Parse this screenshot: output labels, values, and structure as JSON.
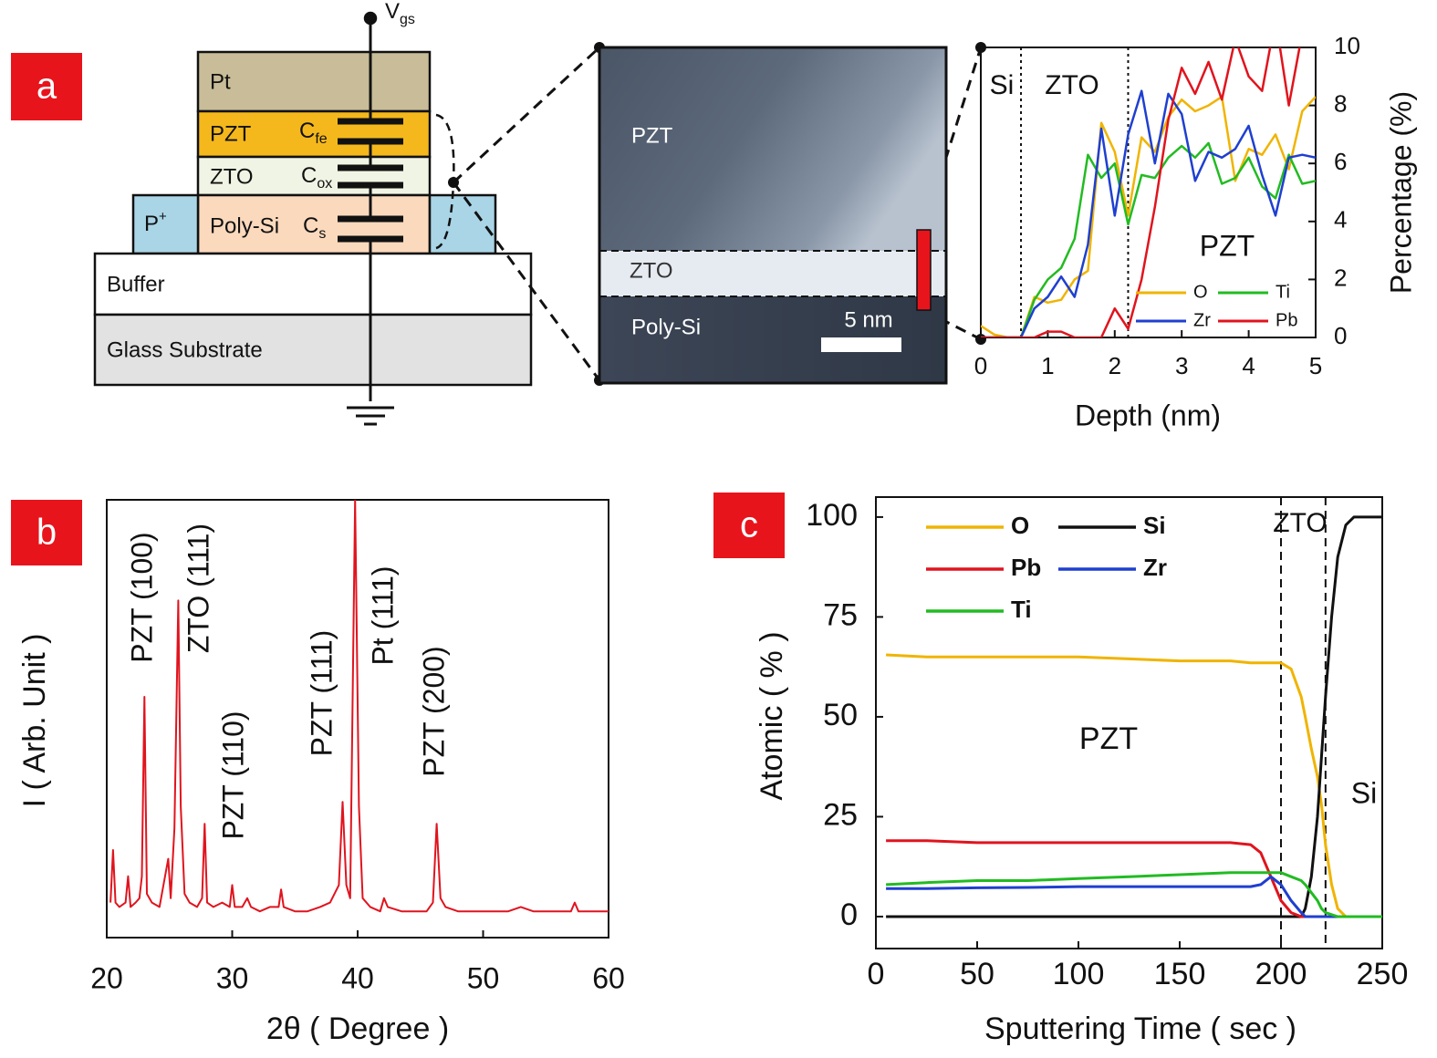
{
  "panel_labels": [
    "a",
    "b",
    "c"
  ],
  "diagram": {
    "terminal": {
      "main": "V",
      "sub": "gs"
    },
    "layers": {
      "pt": "Pt",
      "pzt": "PZT",
      "zto": "ZTO",
      "poly_si": "Poly-Si",
      "p_plus": {
        "main": "P",
        "sup": "+"
      },
      "buffer": "Buffer",
      "glass": "Glass Substrate"
    },
    "capacitors": [
      {
        "main": "C",
        "sub": "fe"
      },
      {
        "main": "C",
        "sub": "ox"
      },
      {
        "main": "C",
        "sub": "s"
      }
    ]
  },
  "tem": {
    "labels": [
      "PZT",
      "ZTO",
      "Poly-Si"
    ],
    "scale_bar": "5 nm"
  },
  "chart_data": [
    {
      "type": "line",
      "xlabel": "Depth (nm)",
      "ylabel": "Percentage (%)",
      "y_axis_side": "right",
      "x": [
        0,
        0.2,
        0.4,
        0.6,
        0.8,
        1.0,
        1.2,
        1.4,
        1.6,
        1.8,
        2.0,
        2.2,
        2.4,
        2.6,
        2.8,
        3.0,
        3.2,
        3.4,
        3.6,
        3.8,
        4.0,
        4.2,
        4.4,
        4.6,
        4.8,
        5.0
      ],
      "xlim": [
        0,
        5
      ],
      "xticks": [
        0,
        1,
        2,
        3,
        4,
        5
      ],
      "ylim": [
        0,
        10
      ],
      "yticks": [
        0,
        2,
        4,
        6,
        8,
        10
      ],
      "vlines": [
        0.6,
        2.2
      ],
      "annotations": [
        "Si",
        "ZTO",
        "PZT"
      ],
      "legend": "lower right",
      "series": [
        {
          "name": "O",
          "color": "#f0b400",
          "values": [
            0.4,
            0.1,
            0,
            0,
            1.4,
            1.2,
            1.3,
            2.0,
            2.3,
            7.4,
            6.4,
            4.2,
            6.9,
            6.4,
            7.6,
            8.2,
            7.8,
            8.0,
            8.3,
            5.4,
            6.5,
            6.3,
            7.0,
            5.8,
            7.8,
            8.3
          ]
        },
        {
          "name": "Ti",
          "color": "#22bb22",
          "values": [
            0,
            0,
            0,
            0,
            1.3,
            2.0,
            2.4,
            3.4,
            6.3,
            5.5,
            6.0,
            3.9,
            5.6,
            5.5,
            6.2,
            6.6,
            6.2,
            6.7,
            5.3,
            5.5,
            6.2,
            5.2,
            4.8,
            6.3,
            5.3,
            5.4
          ]
        },
        {
          "name": "Zr",
          "color": "#1f3fd0",
          "values": [
            0,
            0,
            0,
            0,
            1.0,
            1.4,
            2.1,
            1.4,
            3.2,
            7.2,
            4.2,
            7.0,
            8.5,
            6.0,
            8.4,
            7.7,
            5.4,
            6.4,
            6.2,
            6.5,
            7.3,
            5.6,
            4.2,
            6.2,
            6.3,
            6.2
          ]
        },
        {
          "name": "Pb",
          "color": "#e0141e",
          "values": [
            0,
            0,
            0,
            0,
            0,
            0.2,
            0.2,
            0,
            0,
            0,
            1.0,
            0.3,
            2.0,
            4.5,
            7.5,
            9.3,
            8.4,
            9.5,
            8.2,
            10.3,
            9.0,
            8.5,
            11,
            8.0,
            10.5,
            11
          ]
        }
      ]
    },
    {
      "type": "line",
      "xlabel": "2θ ( Degree )",
      "ylabel": "I ( Arb. Unit )",
      "x": [
        20.3,
        20.5,
        20.7,
        21.0,
        21.5,
        21.7,
        21.9,
        22.3,
        22.6,
        22.8,
        23.0,
        23.2,
        23.6,
        24.2,
        24.9,
        25.1,
        25.4,
        25.7,
        25.9,
        26.2,
        26.6,
        27.2,
        27.6,
        27.8,
        28.0,
        28.5,
        29.2,
        29.8,
        30.0,
        30.2,
        30.8,
        31.2,
        31.5,
        32.2,
        33.0,
        33.7,
        33.9,
        34.1,
        35,
        36,
        37,
        37.8,
        38.5,
        38.8,
        39.1,
        39.4,
        39.8,
        40.1,
        40.4,
        41,
        41.8,
        42.1,
        42.4,
        43.5,
        44.5,
        45.5,
        46.0,
        46.3,
        46.6,
        47,
        48,
        49,
        50,
        51,
        52,
        53,
        54,
        55,
        56,
        57,
        57.3,
        57.6,
        58,
        59,
        60
      ],
      "values": [
        8,
        20,
        8,
        7,
        8,
        14,
        7,
        8,
        9,
        14,
        55,
        10,
        8,
        7,
        18,
        9,
        25,
        77,
        30,
        10,
        8,
        7,
        9,
        26,
        8,
        7,
        8,
        7,
        12,
        7,
        7,
        9,
        7,
        6,
        7,
        7,
        11,
        7,
        6,
        6,
        7,
        8,
        12,
        31,
        12,
        9,
        100,
        30,
        9,
        7,
        6,
        9,
        7,
        6,
        6,
        6,
        8,
        26,
        9,
        7,
        6,
        6,
        6,
        6,
        6,
        7,
        6,
        6,
        6,
        6,
        8,
        6,
        6,
        6,
        6
      ],
      "color": "#e0141e",
      "xlim": [
        20,
        60
      ],
      "xticks": [
        20,
        30,
        40,
        50,
        60
      ],
      "ylim": [
        0,
        100
      ],
      "annotations": [
        "PZT (100)",
        "ZTO (111)",
        "PZT (110)",
        "PZT (111)",
        "Pt (111)",
        "PZT (200)"
      ]
    },
    {
      "type": "line",
      "xlabel": "Sputtering Time ( sec )",
      "ylabel": "Atomic ( % )",
      "x": [
        5,
        25,
        50,
        75,
        100,
        125,
        150,
        175,
        185,
        190,
        195,
        200,
        205,
        210,
        212,
        215,
        218,
        220,
        222,
        225,
        228,
        232,
        236,
        240,
        245,
        250
      ],
      "xlim": [
        0,
        250
      ],
      "xticks": [
        0,
        50,
        100,
        150,
        200,
        250
      ],
      "ylim": [
        -8,
        105
      ],
      "yticks": [
        0,
        25,
        50,
        75,
        100
      ],
      "vlines": [
        200,
        222
      ],
      "annotations": [
        "ZTO",
        "PZT",
        "Si"
      ],
      "legend": "upper left",
      "series": [
        {
          "name": "O",
          "color": "#f0b400",
          "values": [
            65.5,
            65,
            65,
            65,
            65,
            64.5,
            64,
            64,
            63.5,
            63.5,
            63.5,
            63.5,
            62,
            55,
            50,
            42,
            35,
            28,
            18,
            8,
            2,
            0,
            0,
            0,
            0,
            0
          ]
        },
        {
          "name": "Si",
          "color": "#111111",
          "values": [
            0,
            0,
            0,
            0,
            0,
            0,
            0,
            0,
            0,
            0,
            0,
            0,
            0,
            0,
            2,
            10,
            25,
            40,
            55,
            75,
            90,
            98,
            100,
            100,
            100,
            100
          ]
        },
        {
          "name": "Pb",
          "color": "#e0141e",
          "values": [
            19,
            19,
            18.5,
            18.5,
            18.5,
            18.5,
            18.5,
            18.5,
            18,
            16,
            10,
            4,
            1,
            0,
            0,
            0,
            0,
            0,
            0,
            0,
            0,
            0,
            0,
            0,
            0,
            0
          ]
        },
        {
          "name": "Zr",
          "color": "#1f3fd0",
          "values": [
            7,
            7,
            7.2,
            7.3,
            7.5,
            7.5,
            7.5,
            7.5,
            7.5,
            8,
            10,
            8,
            4,
            1,
            0,
            0,
            0,
            0,
            0,
            0,
            0,
            0,
            0,
            0,
            0,
            0
          ]
        },
        {
          "name": "Ti",
          "color": "#22bb22",
          "values": [
            8,
            8.5,
            9,
            9,
            9.5,
            10,
            10.5,
            11,
            11,
            11,
            11,
            11,
            10,
            9,
            8,
            6,
            4,
            2,
            1,
            0.5,
            0,
            0,
            0,
            0,
            0,
            0
          ]
        }
      ]
    }
  ]
}
